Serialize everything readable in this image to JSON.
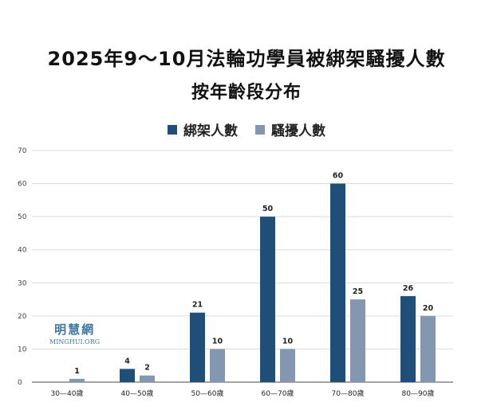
{
  "title_line1": "2025年9～10月法輪功學員被綁架騷擾人數",
  "title_line2": "按年齡段分布",
  "watermark": {
    "line1": "明慧網",
    "line2": "MINGHUI.ORG"
  },
  "chart_data": {
    "type": "bar",
    "categories": [
      "30—40歲",
      "40—50歲",
      "50—60歲",
      "60—70歲",
      "70—80歲",
      "80—90歲"
    ],
    "series": [
      {
        "name": "綁架人數",
        "color": "#1f4e79",
        "values": [
          null,
          4,
          21,
          50,
          60,
          26
        ]
      },
      {
        "name": "騷擾人數",
        "color": "#8497b0",
        "values": [
          1,
          2,
          10,
          10,
          25,
          20
        ]
      }
    ],
    "ylim": [
      0,
      70
    ],
    "yticks": [
      0,
      10,
      20,
      30,
      40,
      50,
      60,
      70
    ],
    "grid": true,
    "legend_position": "top-center",
    "data_labels": true
  }
}
